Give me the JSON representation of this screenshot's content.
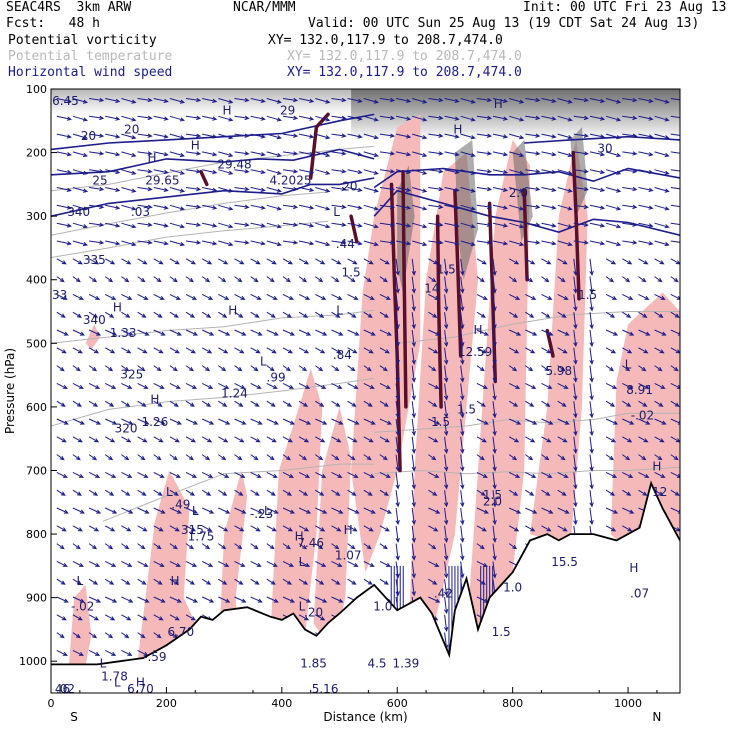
{
  "header": {
    "model": "SEAC4RS  3km ARW",
    "org": "NCAR/MMM",
    "init": "Init: 00 UTC Fri 23 Aug 13",
    "fcst": "Fcst:   48 h",
    "valid": "Valid: 00 UTC Sun 25 Aug 13 (19 CDT Sat 24 Aug 13)"
  },
  "legend": [
    {
      "label": "Potential vorticity",
      "xy": "XY= 132.0,117.9 to 208.7,474.0",
      "color": "#000000"
    },
    {
      "label": "Potential temperature",
      "xy": "XY= 132.0,117.9 to 208.7,474.0",
      "color": "#b8b8b8"
    },
    {
      "label": "Horizontal wind speed",
      "xy": "XY= 132.0,117.9 to 208.7,474.0",
      "color": "#1c1c8c"
    }
  ],
  "chart_data": {
    "type": "cross-section",
    "xlabel": "Distance (km)",
    "ylabel": "Pressure (hPa)",
    "xlim": [
      0,
      1090
    ],
    "ylim": [
      1050,
      100
    ],
    "x_ticks": [
      0,
      200,
      400,
      600,
      800,
      1000
    ],
    "y_ticks": [
      100,
      200,
      300,
      400,
      500,
      600,
      700,
      800,
      900,
      1000
    ],
    "left_end_label": "S",
    "right_end_label": "N",
    "colors": {
      "pv_positive": "#f6b9b9",
      "pv_strong": "#5a0f2a",
      "wind": "#1c1c8c",
      "theta": "#b4b4b4",
      "terrain": "#000000",
      "upper_shade": "#555555"
    },
    "theta_contours": [
      {
        "label": "340",
        "p": [
          [
            0,
            260
          ],
          [
            100,
            250
          ],
          [
            200,
            232
          ],
          [
            300,
            215
          ],
          [
            400,
            205
          ],
          [
            500,
            195
          ],
          [
            560,
            190
          ]
        ]
      },
      {
        "label": "335",
        "p": [
          [
            0,
            330
          ],
          [
            100,
            312
          ],
          [
            200,
            295
          ],
          [
            300,
            280
          ],
          [
            400,
            268
          ],
          [
            480,
            262
          ]
        ]
      },
      {
        "label": "330",
        "p": [
          [
            0,
            365
          ],
          [
            100,
            350
          ],
          [
            200,
            333
          ],
          [
            300,
            323
          ],
          [
            400,
            315
          ],
          [
            480,
            308
          ]
        ]
      },
      {
        "label": "325",
        "p": [
          [
            0,
            500
          ],
          [
            100,
            490
          ],
          [
            200,
            480
          ],
          [
            300,
            474
          ],
          [
            400,
            460
          ],
          [
            500,
            455
          ],
          [
            560,
            448
          ]
        ]
      },
      {
        "label": "320",
        "p": [
          [
            0,
            630
          ],
          [
            100,
            604
          ],
          [
            200,
            592
          ],
          [
            300,
            585
          ],
          [
            400,
            575
          ],
          [
            500,
            563
          ],
          [
            560,
            555
          ]
        ]
      },
      {
        "label": "315",
        "p": [
          [
            90,
            780
          ],
          [
            200,
            740
          ],
          [
            300,
            705
          ],
          [
            400,
            700
          ],
          [
            500,
            690
          ],
          [
            560,
            690
          ]
        ]
      },
      {
        "label": "1.5",
        "p": [
          [
            560,
            705
          ],
          [
            640,
            700
          ],
          [
            720,
            705
          ],
          [
            790,
            702
          ],
          [
            860,
            705
          ],
          [
            940,
            700
          ],
          [
            1000,
            700
          ],
          [
            1090,
            695
          ]
        ]
      },
      {
        "label": "",
        "p": [
          [
            560,
            640
          ],
          [
            640,
            635
          ],
          [
            720,
            630
          ],
          [
            790,
            620
          ],
          [
            860,
            625
          ],
          [
            940,
            620
          ],
          [
            1000,
            610
          ],
          [
            1090,
            610
          ]
        ]
      },
      {
        "label": "",
        "p": [
          [
            600,
            500
          ],
          [
            700,
            490
          ],
          [
            800,
            470
          ],
          [
            900,
            455
          ],
          [
            1000,
            450
          ],
          [
            1090,
            450
          ]
        ]
      }
    ],
    "wind_speed_contours": [
      {
        "label": "20",
        "p": [
          [
            0,
            195
          ],
          [
            100,
            185
          ],
          [
            200,
            180
          ],
          [
            300,
            175
          ],
          [
            400,
            170
          ],
          [
            500,
            150
          ],
          [
            560,
            140
          ]
        ]
      },
      {
        "label": "25",
        "p": [
          [
            0,
            235
          ],
          [
            100,
            230
          ],
          [
            200,
            210
          ],
          [
            300,
            215
          ],
          [
            360,
            210
          ],
          [
            420,
            212
          ],
          [
            500,
            195
          ],
          [
            560,
            210
          ]
        ]
      },
      {
        "label": "",
        "p": [
          [
            0,
            300
          ],
          [
            100,
            280
          ],
          [
            200,
            270
          ],
          [
            300,
            260
          ],
          [
            400,
            265
          ],
          [
            450,
            250
          ],
          [
            500,
            250
          ],
          [
            560,
            240
          ]
        ]
      },
      {
        "label": "",
        "p": [
          [
            560,
            255
          ],
          [
            600,
            230
          ],
          [
            680,
            225
          ],
          [
            760,
            235
          ],
          [
            820,
            235
          ],
          [
            880,
            230
          ],
          [
            940,
            245
          ],
          [
            1000,
            225
          ],
          [
            1090,
            240
          ]
        ]
      },
      {
        "label": "",
        "p": [
          [
            560,
            300
          ],
          [
            600,
            260
          ],
          [
            680,
            280
          ],
          [
            760,
            300
          ],
          [
            820,
            310
          ],
          [
            880,
            325
          ],
          [
            940,
            305
          ],
          [
            1000,
            310
          ],
          [
            1090,
            330
          ]
        ]
      },
      {
        "label": "30",
        "p": [
          [
            820,
            185
          ],
          [
            900,
            180
          ],
          [
            1000,
            175
          ],
          [
            1090,
            180
          ]
        ]
      }
    ],
    "field_labels": [
      {
        "t": "6.45",
        "x": 25,
        "p": 125
      },
      {
        "t": "20",
        "x": 65,
        "p": 180
      },
      {
        "t": "20",
        "x": 140,
        "p": 170
      },
      {
        "t": "25",
        "x": 85,
        "p": 250
      },
      {
        "t": "340",
        "x": 48,
        "p": 300
      },
      {
        "t": ".03",
        "x": 155,
        "p": 300
      },
      {
        "t": "H",
        "x": 175,
        "p": 215
      },
      {
        "t": "29.65",
        "x": 193,
        "p": 250
      },
      {
        "t": "H",
        "x": 250,
        "p": 195
      },
      {
        "t": "29.48",
        "x": 318,
        "p": 225
      },
      {
        "t": "4.2025",
        "x": 415,
        "p": 250
      },
      {
        "t": "20",
        "x": 518,
        "p": 260
      },
      {
        "t": "H",
        "x": 305,
        "p": 140
      },
      {
        "t": "29",
        "x": 410,
        "p": 140
      },
      {
        "t": "335",
        "x": 75,
        "p": 375
      },
      {
        "t": "33",
        "x": 15,
        "p": 430
      },
      {
        "t": "340",
        "x": 75,
        "p": 470
      },
      {
        "t": "H",
        "x": 115,
        "p": 450
      },
      {
        "t": "1.33",
        "x": 125,
        "p": 490
      },
      {
        "t": "325",
        "x": 140,
        "p": 555
      },
      {
        "t": "L",
        "x": 495,
        "p": 300
      },
      {
        "t": ".44",
        "x": 510,
        "p": 350
      },
      {
        "t": "1.5",
        "x": 520,
        "p": 395
      },
      {
        "t": "L",
        "x": 500,
        "p": 455
      },
      {
        "t": ".84",
        "x": 505,
        "p": 525
      },
      {
        "t": "H",
        "x": 315,
        "p": 455
      },
      {
        "t": "1.24",
        "x": 318,
        "p": 585
      },
      {
        "t": "L",
        "x": 368,
        "p": 535
      },
      {
        "t": ".99",
        "x": 390,
        "p": 560
      },
      {
        "t": "H",
        "x": 180,
        "p": 595
      },
      {
        "t": "1.26",
        "x": 180,
        "p": 630
      },
      {
        "t": "320",
        "x": 130,
        "p": 640
      },
      {
        "t": "L",
        "x": 205,
        "p": 740
      },
      {
        "t": ".49",
        "x": 225,
        "p": 760
      },
      {
        "t": "315",
        "x": 245,
        "p": 800
      },
      {
        "t": "L",
        "x": 250,
        "p": 770
      },
      {
        "t": "1.75",
        "x": 260,
        "p": 810
      },
      {
        "t": "L",
        "x": 375,
        "p": 770
      },
      {
        "t": "-.23",
        "x": 365,
        "p": 775
      },
      {
        "t": "H",
        "x": 430,
        "p": 810
      },
      {
        "t": "7.46",
        "x": 450,
        "p": 820
      },
      {
        "t": "H",
        "x": 515,
        "p": 800
      },
      {
        "t": "1.07",
        "x": 515,
        "p": 840
      },
      {
        "t": "L",
        "x": 50,
        "p": 880
      },
      {
        "t": "-.02",
        "x": 55,
        "p": 920
      },
      {
        "t": "H",
        "x": 215,
        "p": 880
      },
      {
        "t": "6.70",
        "x": 225,
        "p": 960
      },
      {
        "t": "L",
        "x": 435,
        "p": 850
      },
      {
        "t": ".20",
        "x": 455,
        "p": 930
      },
      {
        "t": "L",
        "x": 435,
        "p": 920
      },
      {
        "t": "1.85",
        "x": 455,
        "p": 1010
      },
      {
        "t": "L",
        "x": 115,
        "p": 1040
      },
      {
        "t": "-.59",
        "x": 180,
        "p": 1000
      },
      {
        "t": "L",
        "x": 90,
        "p": 1010
      },
      {
        "t": "1.78",
        "x": 110,
        "p": 1030
      },
      {
        "t": ".02",
        "x": 25,
        "p": 1050
      },
      {
        "t": "H",
        "x": 155,
        "p": 1040
      },
      {
        "t": "6.70",
        "x": 155,
        "p": 1050
      },
      {
        "t": "46",
        "x": 20,
        "p": 1050
      },
      {
        "t": "5.16",
        "x": 475,
        "p": 1050
      },
      {
        "t": "4.5",
        "x": 565,
        "p": 1010
      },
      {
        "t": "1.39",
        "x": 615,
        "p": 1010
      },
      {
        "t": ".42",
        "x": 680,
        "p": 900
      },
      {
        "t": "1.5",
        "x": 720,
        "p": 610
      },
      {
        "t": "1.5",
        "x": 675,
        "p": 630
      },
      {
        "t": "12.59",
        "x": 735,
        "p": 520
      },
      {
        "t": "H",
        "x": 740,
        "p": 485
      },
      {
        "t": "1.5",
        "x": 765,
        "p": 745
      },
      {
        "t": "2.0",
        "x": 765,
        "p": 755
      },
      {
        "t": "1.5",
        "x": 685,
        "p": 390
      },
      {
        "t": "14",
        "x": 660,
        "p": 420
      },
      {
        "t": "5.98",
        "x": 880,
        "p": 550
      },
      {
        "t": "1.5",
        "x": 930,
        "p": 430
      },
      {
        "t": "L",
        "x": 1000,
        "p": 540
      },
      {
        "t": "8.91",
        "x": 1020,
        "p": 580
      },
      {
        "t": "-.02",
        "x": 1025,
        "p": 620
      },
      {
        "t": "H",
        "x": 1050,
        "p": 700
      },
      {
        "t": "12",
        "x": 1055,
        "p": 740
      },
      {
        "t": "H",
        "x": 1010,
        "p": 860
      },
      {
        "t": ".07",
        "x": 1020,
        "p": 900
      },
      {
        "t": "15.5",
        "x": 890,
        "p": 850
      },
      {
        "t": "1.0",
        "x": 800,
        "p": 890
      },
      {
        "t": "1.0",
        "x": 575,
        "p": 920
      },
      {
        "t": "2.0",
        "x": 810,
        "p": 270
      },
      {
        "t": "30",
        "x": 960,
        "p": 200
      },
      {
        "t": "H",
        "x": 775,
        "p": 130
      },
      {
        "t": "H",
        "x": 705,
        "p": 170
      },
      {
        "t": "1.5",
        "x": 780,
        "p": 960
      }
    ]
  }
}
